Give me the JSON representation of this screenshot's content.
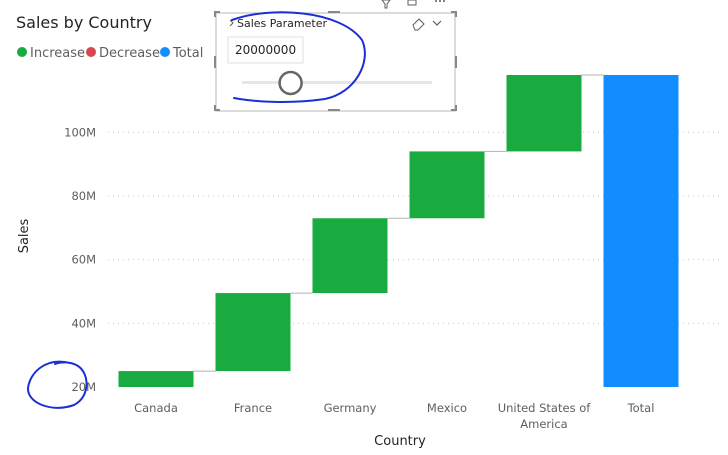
{
  "chart_data": {
    "type": "waterfall",
    "title": "Sales by Country",
    "xlabel": "Country",
    "ylabel": "Sales",
    "categories": [
      "Canada",
      "France",
      "Germany",
      "Mexico",
      "United States of America",
      "Total"
    ],
    "category_lines": [
      [
        "Canada"
      ],
      [
        "France"
      ],
      [
        "Germany"
      ],
      [
        "Mexico"
      ],
      [
        "United States of",
        "America"
      ],
      [
        "Total"
      ]
    ],
    "base": 20000000,
    "steps": [
      {
        "category": "Canada",
        "start": 20000000,
        "end": 25000000,
        "kind": "increase"
      },
      {
        "category": "France",
        "start": 25000000,
        "end": 49500000,
        "kind": "increase"
      },
      {
        "category": "Germany",
        "start": 49500000,
        "end": 73000000,
        "kind": "increase"
      },
      {
        "category": "Mexico",
        "start": 73000000,
        "end": 94000000,
        "kind": "increase"
      },
      {
        "category": "United States of America",
        "start": 94000000,
        "end": 118000000,
        "kind": "increase"
      },
      {
        "category": "Total",
        "start": 20000000,
        "end": 118000000,
        "kind": "total"
      }
    ],
    "yticks": [
      {
        "value": 20000000,
        "label": "20M"
      },
      {
        "value": 40000000,
        "label": "40M"
      },
      {
        "value": 60000000,
        "label": "60M"
      },
      {
        "value": 80000000,
        "label": "80M"
      },
      {
        "value": 100000000,
        "label": "100M"
      }
    ],
    "ylim": [
      20000000,
      118000000
    ],
    "grid": true,
    "legend_position": "top-left",
    "legend": [
      {
        "label": "Increase",
        "color": "#1aab40"
      },
      {
        "label": "Decrease",
        "color": "#d64550"
      },
      {
        "label": "Total",
        "color": "#118dff"
      }
    ],
    "colors": {
      "increase": "#1aab40",
      "decrease": "#d64550",
      "total": "#118dff"
    }
  },
  "slicer": {
    "title": "Sales Parameter",
    "value": "20000000",
    "slider_fraction": 0.14
  }
}
